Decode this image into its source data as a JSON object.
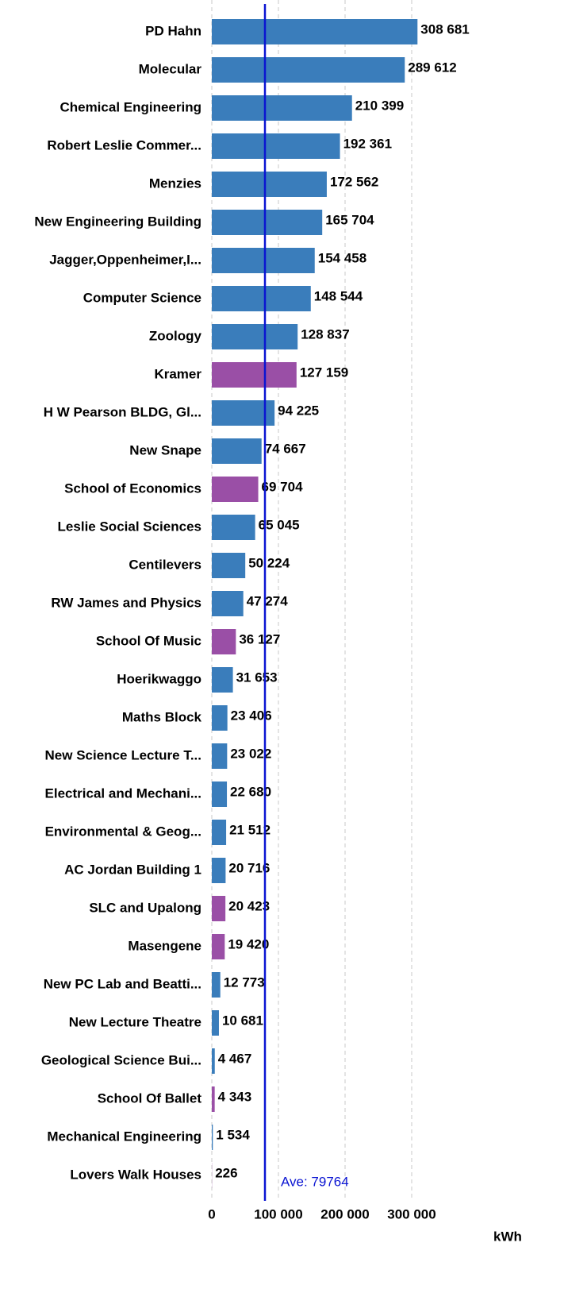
{
  "chart_data": {
    "type": "barh",
    "categories": [
      "PD Hahn",
      "Molecular",
      "Chemical Engineering",
      "Robert Leslie Commer...",
      "Menzies",
      "New Engineering Building",
      "Jagger,Oppenheimer,I...",
      "Computer Science",
      "Zoology",
      "Kramer",
      "H W Pearson BLDG, Gl...",
      "New Snape",
      "School of Economics",
      "Leslie Social Sciences",
      "Centilevers",
      "RW James and Physics",
      "School Of Music",
      "Hoerikwaggo",
      "Maths Block",
      "New Science Lecture T...",
      "Electrical and Mechani...",
      "Environmental & Geog...",
      "AC Jordan Building 1",
      "SLC and Upalong",
      "Masengene",
      "New PC Lab and Beatti...",
      "New Lecture Theatre",
      "Geological Science Bui...",
      "School Of Ballet",
      "Mechanical Engineering",
      "Lovers Walk Houses"
    ],
    "values": [
      308681,
      289612,
      210399,
      192361,
      172562,
      165704,
      154458,
      148544,
      128837,
      127159,
      94225,
      74667,
      69704,
      65045,
      50224,
      47274,
      36127,
      31653,
      23406,
      23022,
      22680,
      21512,
      20716,
      20423,
      19420,
      12773,
      10681,
      4467,
      4343,
      1534,
      226
    ],
    "value_labels": [
      "308 681",
      "289 612",
      "210 399",
      "192 361",
      "172 562",
      "165 704",
      "154 458",
      "148 544",
      "128 837",
      "127 159",
      "94 225",
      "74 667",
      "69 704",
      "65 045",
      "50 224",
      "47 274",
      "36 127",
      "31 653",
      "23 406",
      "23 022",
      "22 680",
      "21 512",
      "20 716",
      "20 423",
      "19 420",
      "12 773",
      "10 681",
      "4 467",
      "4 343",
      "1 534",
      "226"
    ],
    "colors": [
      "#3a7dbb",
      "#3a7dbb",
      "#3a7dbb",
      "#3a7dbb",
      "#3a7dbb",
      "#3a7dbb",
      "#3a7dbb",
      "#3a7dbb",
      "#3a7dbb",
      "#9a4fa6",
      "#3a7dbb",
      "#3a7dbb",
      "#9a4fa6",
      "#3a7dbb",
      "#3a7dbb",
      "#3a7dbb",
      "#9a4fa6",
      "#3a7dbb",
      "#3a7dbb",
      "#3a7dbb",
      "#3a7dbb",
      "#3a7dbb",
      "#3a7dbb",
      "#9a4fa6",
      "#9a4fa6",
      "#3a7dbb",
      "#3a7dbb",
      "#3a7dbb",
      "#9a4fa6",
      "#3a7dbb",
      "#9a4fa6"
    ],
    "xlim": [
      0,
      400000
    ],
    "xticks": [
      0,
      {
        "value": 100000,
        "label": "100 000"
      },
      {
        "value": 200000,
        "label": "200 000"
      },
      {
        "value": 300000,
        "label": "300 000"
      }
    ],
    "xlabel": "kWh",
    "grid": true,
    "average": {
      "value": 79764,
      "label": "Ave: 79764",
      "color": "#0a14d2"
    }
  }
}
